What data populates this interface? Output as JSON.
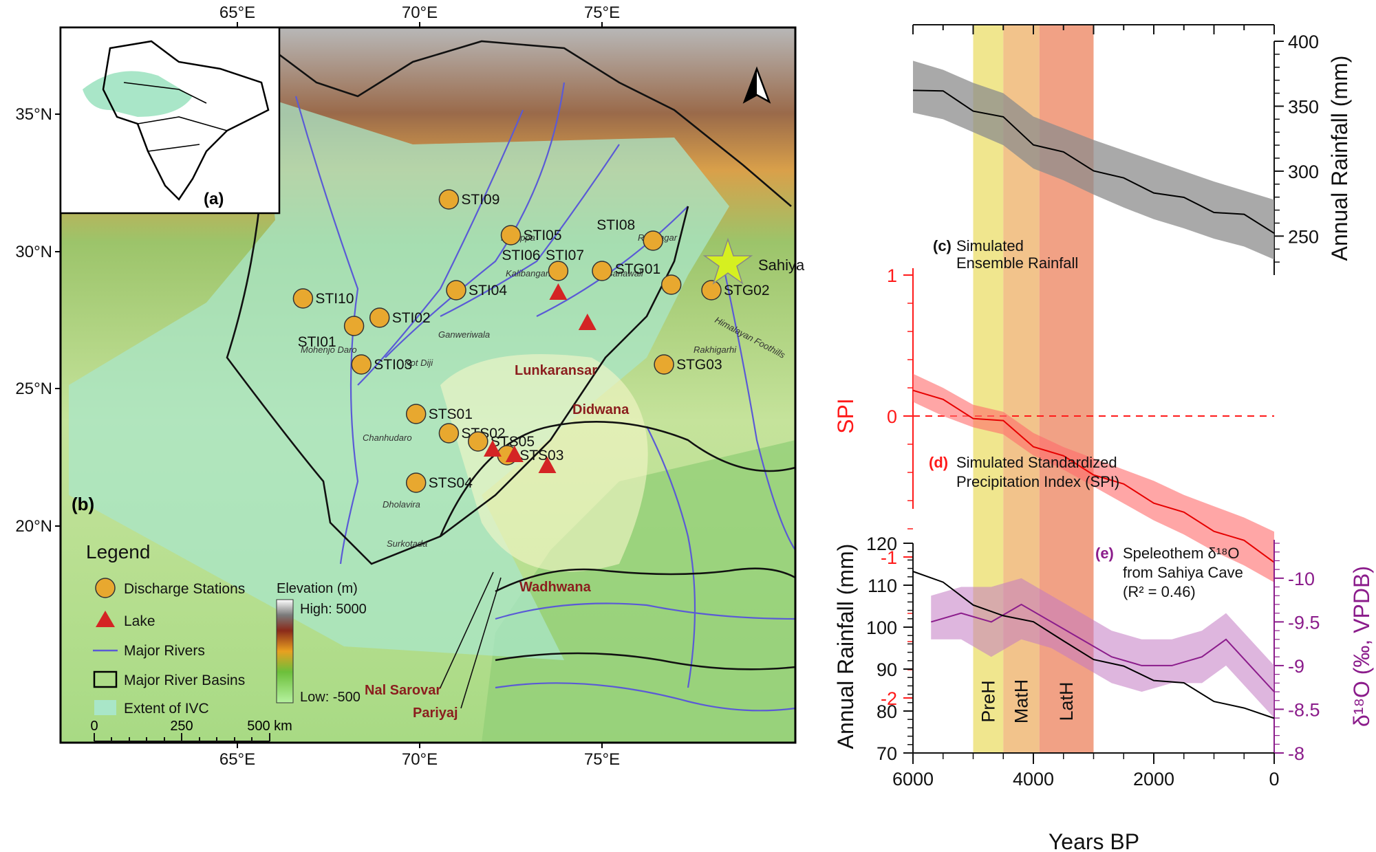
{
  "map_panel": {
    "panel_label": "(b)",
    "inset_label": "(a)",
    "lon_ticks": [
      "65°E",
      "70°E",
      "75°E"
    ],
    "lat_ticks": [
      "35°N",
      "30°N",
      "25°N",
      "20°N"
    ],
    "stations": [
      {
        "id": "STI09",
        "lon": 70.8,
        "lat": 31.9
      },
      {
        "id": "STI05",
        "lon": 72.5,
        "lat": 30.6
      },
      {
        "id": "STI06",
        "lon": 73.8,
        "lat": 29.3
      },
      {
        "id": "STI08",
        "lon": 76.4,
        "lat": 30.4
      },
      {
        "id": "STI07",
        "lon": 75.0,
        "lat": 29.3
      },
      {
        "id": "STG01",
        "lon": 76.9,
        "lat": 28.8
      },
      {
        "id": "STG02",
        "lon": 78.0,
        "lat": 28.6
      },
      {
        "id": "STI04",
        "lon": 71.0,
        "lat": 28.6
      },
      {
        "id": "STI10",
        "lon": 66.8,
        "lat": 28.3
      },
      {
        "id": "STI02",
        "lon": 68.9,
        "lat": 27.6
      },
      {
        "id": "STI01",
        "lon": 68.2,
        "lat": 27.3
      },
      {
        "id": "STI03",
        "lon": 68.4,
        "lat": 25.9
      },
      {
        "id": "STG03",
        "lon": 76.7,
        "lat": 25.9
      },
      {
        "id": "STS01",
        "lon": 69.9,
        "lat": 24.1
      },
      {
        "id": "STS02",
        "lon": 70.8,
        "lat": 23.4
      },
      {
        "id": "STS05",
        "lon": 71.6,
        "lat": 23.1
      },
      {
        "id": "STS03",
        "lon": 72.4,
        "lat": 22.6
      },
      {
        "id": "STS04",
        "lon": 69.9,
        "lat": 21.6
      }
    ],
    "lakes": [
      {
        "name": "Lunkaransar",
        "lon": 73.8,
        "lat": 28.5
      },
      {
        "name": "Didwana",
        "lon": 74.6,
        "lat": 27.4
      },
      {
        "name": "Wadhwana",
        "lon": 73.5,
        "lat": 22.2
      },
      {
        "name": "Nal Sarovar",
        "lon": 72.0,
        "lat": 22.8
      },
      {
        "name": "Pariyaj",
        "lon": 72.6,
        "lat": 22.6
      }
    ],
    "places": [
      "Harappa",
      "Kalibangan",
      "Banawali",
      "Rupnagar",
      "Ganweriwala",
      "Mohenjo Daro",
      "Kot Diji",
      "Chanhudaro",
      "Dholavira",
      "Surkotada",
      "Rakhigarhi",
      "Himalayan Foothills"
    ],
    "sahiya_label": "Sahiya",
    "legend": {
      "title": "Legend",
      "items": [
        "Discharge Stations",
        "Lake",
        "Major Rivers",
        "Major River Basins",
        "Extent of IVC"
      ]
    },
    "elevation_bar": {
      "title": "Elevation (m)",
      "high": "High: 5000",
      "low": "Low: -500"
    },
    "scalebar": [
      "0",
      "250",
      "500 km"
    ]
  },
  "chart_data": [
    {
      "type": "area",
      "panel": "(c)",
      "caption_lines": [
        "Simulated",
        "Ensemble Rainfall"
      ],
      "ylabel": "Annual Rainfall (mm)",
      "yticks": [
        250,
        300,
        350,
        400
      ],
      "ylim": [
        220,
        400
      ],
      "xlim": [
        6000,
        0
      ],
      "x": [
        6000,
        5500,
        5000,
        4500,
        4000,
        3500,
        3000,
        2500,
        2000,
        1500,
        1000,
        500,
        0
      ],
      "series": [
        {
          "mean": [
            364,
            360,
            348,
            340,
            322,
            313,
            302,
            293,
            285,
            278,
            270,
            265,
            254
          ],
          "upper": [
            385,
            378,
            368,
            360,
            342,
            333,
            324,
            316,
            308,
            300,
            292,
            285,
            278
          ],
          "lower": [
            345,
            340,
            330,
            320,
            302,
            293,
            282,
            272,
            263,
            256,
            248,
            242,
            232
          ]
        }
      ]
    },
    {
      "type": "area",
      "panel": "(d)",
      "caption_lines": [
        "Simulated Standardized",
        "Precipitation Index (SPI)"
      ],
      "ylabel": "SPI",
      "yticks": [
        -2,
        -1,
        0,
        1
      ],
      "ylim": [
        -2,
        1
      ],
      "reference_line": 0,
      "xlim": [
        6000,
        0
      ],
      "x": [
        6000,
        5500,
        5000,
        4500,
        4000,
        3500,
        3000,
        2500,
        2000,
        1500,
        1000,
        500,
        0
      ],
      "series": [
        {
          "mean": [
            0.2,
            0.1,
            0.0,
            -0.05,
            -0.2,
            -0.3,
            -0.4,
            -0.5,
            -0.6,
            -0.7,
            -0.8,
            -0.9,
            -1.02
          ],
          "upper": [
            0.3,
            0.2,
            0.08,
            0.03,
            -0.12,
            -0.22,
            -0.3,
            -0.38,
            -0.46,
            -0.56,
            -0.64,
            -0.72,
            -0.82
          ],
          "lower": [
            0.1,
            0.0,
            -0.08,
            -0.13,
            -0.28,
            -0.38,
            -0.5,
            -0.62,
            -0.74,
            -0.84,
            -0.96,
            -1.06,
            -1.18
          ]
        }
      ]
    },
    {
      "type": "line",
      "panel": "(e)",
      "caption_lines": [
        "Speleothem δ¹⁸O",
        "from Sahiya Cave",
        "(R² = 0.46)"
      ],
      "xlabel": "Years BP",
      "ylabel_left": "Annual Rainfall (mm)",
      "ylabel_right": "δ¹⁸O (‰, VPDB)",
      "xticks": [
        6000,
        4000,
        2000,
        0
      ],
      "yticks_left": [
        70,
        80,
        90,
        100,
        110,
        120
      ],
      "ylim_left": [
        70,
        120
      ],
      "yticks_right": [
        "-10",
        "-9.5",
        "-9",
        "-8.5",
        "-8"
      ],
      "ylim_right": [
        -8,
        -10.4
      ],
      "x": [
        6000,
        5500,
        5000,
        4500,
        4000,
        3500,
        3000,
        2500,
        2000,
        1500,
        1000,
        500,
        0
      ],
      "rainfall": [
        114,
        110,
        106,
        102,
        102,
        96,
        93,
        90,
        88,
        86,
        83,
        80,
        79
      ],
      "d18O_x": [
        5700,
        5200,
        4700,
        4200,
        3700,
        3200,
        2700,
        2200,
        1700,
        1200,
        800,
        400,
        0
      ],
      "d18O_mean": [
        -9.5,
        -9.6,
        -9.5,
        -9.7,
        -9.5,
        -9.3,
        -9.1,
        -9.0,
        -9.0,
        -9.1,
        -9.3,
        -9.0,
        -8.7
      ],
      "d18O_upper": [
        -9.8,
        -9.9,
        -9.9,
        -10.0,
        -9.8,
        -9.6,
        -9.4,
        -9.3,
        -9.3,
        -9.4,
        -9.6,
        -9.3,
        -9.0
      ],
      "d18O_lower": [
        -9.3,
        -9.3,
        -9.1,
        -9.3,
        -9.2,
        -9.0,
        -8.8,
        -8.7,
        -8.8,
        -8.8,
        -9.0,
        -8.7,
        -8.4
      ]
    }
  ],
  "periods": [
    {
      "label": "PreH",
      "start": 5000,
      "end": 4500,
      "color": "#ede27a"
    },
    {
      "label": "MatH",
      "start": 4500,
      "end": 3900,
      "color": "#f0b877"
    },
    {
      "label": "LatH",
      "start": 3900,
      "end": 3000,
      "color": "#ee9070"
    }
  ],
  "colors": {
    "rain": "#000000",
    "spi": "#ff1a1a",
    "d18o": "#8b1c8b",
    "ivc": "#a9e6c8",
    "station": "#e8a82f",
    "lake": "#d42424",
    "river": "#5a5ad6"
  }
}
